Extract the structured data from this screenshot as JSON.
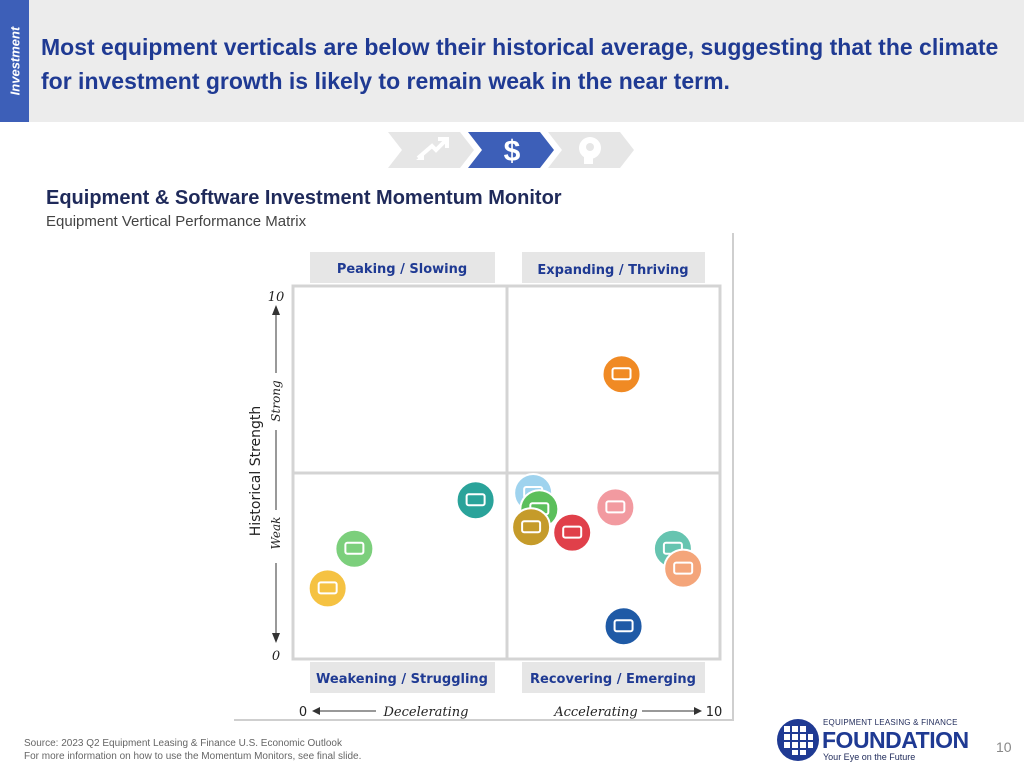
{
  "side_tab": "Investment",
  "headline": "Most equipment verticals are below their historical average, suggesting that the climate for investment growth is likely to remain weak in the near term.",
  "nav_icons": [
    "growth-arrow-icon",
    "dollar-icon",
    "head-gears-icon"
  ],
  "nav_dollar": "$",
  "chart_title": "Equipment & Software Investment Momentum Monitor",
  "chart_subtitle": "Equipment Vertical Performance Matrix",
  "chart_data": {
    "type": "scatter",
    "xlim": [
      0,
      10
    ],
    "ylim": [
      0,
      10
    ],
    "x_min_label": "0",
    "x_max_label": "10",
    "y_min_label": "0",
    "y_max_label": "10",
    "x_left_label": "Decelerating",
    "x_right_label": "Accelerating",
    "ylabel": "Historical Strength",
    "y_low_label": "Weak",
    "y_high_label": "Strong",
    "quadrants": {
      "top_left": "Peaking / Slowing",
      "top_right": "Expanding / Thriving",
      "bottom_left": "Weakening / Struggling",
      "bottom_right": "Recovering / Emerging"
    },
    "points": [
      {
        "icon": "computer-icon",
        "color": "#f08a24",
        "x": 7.75,
        "y": 7.8
      },
      {
        "icon": "train-icon",
        "color": "#2aa39a",
        "x": 4.2,
        "y": 4.3
      },
      {
        "icon": "airplane-icon",
        "color": "#9fd3ee",
        "x": 5.6,
        "y": 4.5
      },
      {
        "icon": "agriculture-icon",
        "color": "#5bbf5b",
        "x": 5.75,
        "y": 4.05
      },
      {
        "icon": "truck-icon",
        "color": "#f29aa0",
        "x": 7.6,
        "y": 4.1
      },
      {
        "icon": "oil-pump-icon",
        "color": "#c59b2a",
        "x": 5.55,
        "y": 3.55
      },
      {
        "icon": "medical-device-icon",
        "color": "#e0404a",
        "x": 6.55,
        "y": 3.4
      },
      {
        "icon": "medical-caduceus-icon",
        "color": "#7ccf7c",
        "x": 1.25,
        "y": 2.95
      },
      {
        "icon": "ship-icon",
        "color": "#66c4b0",
        "x": 9.0,
        "y": 2.95
      },
      {
        "icon": "construction-icon",
        "color": "#f4a57a",
        "x": 9.25,
        "y": 2.4
      },
      {
        "icon": "materials-handling-icon",
        "color": "#f5c242",
        "x": 0.6,
        "y": 1.85
      },
      {
        "icon": "mining-icon",
        "color": "#1f5aa6",
        "x": 7.8,
        "y": 0.8
      }
    ]
  },
  "footer": {
    "source": "Source: 2023 Q2 Equipment Leasing & Finance U.S. Economic Outlook",
    "note": "For more information on how to use the Momentum Monitors, see final slide."
  },
  "logo": {
    "small": "EQUIPMENT LEASING & FINANCE",
    "big": "FOUNDATION",
    "tagline": "Your Eye on the Future"
  },
  "page_number": "10"
}
